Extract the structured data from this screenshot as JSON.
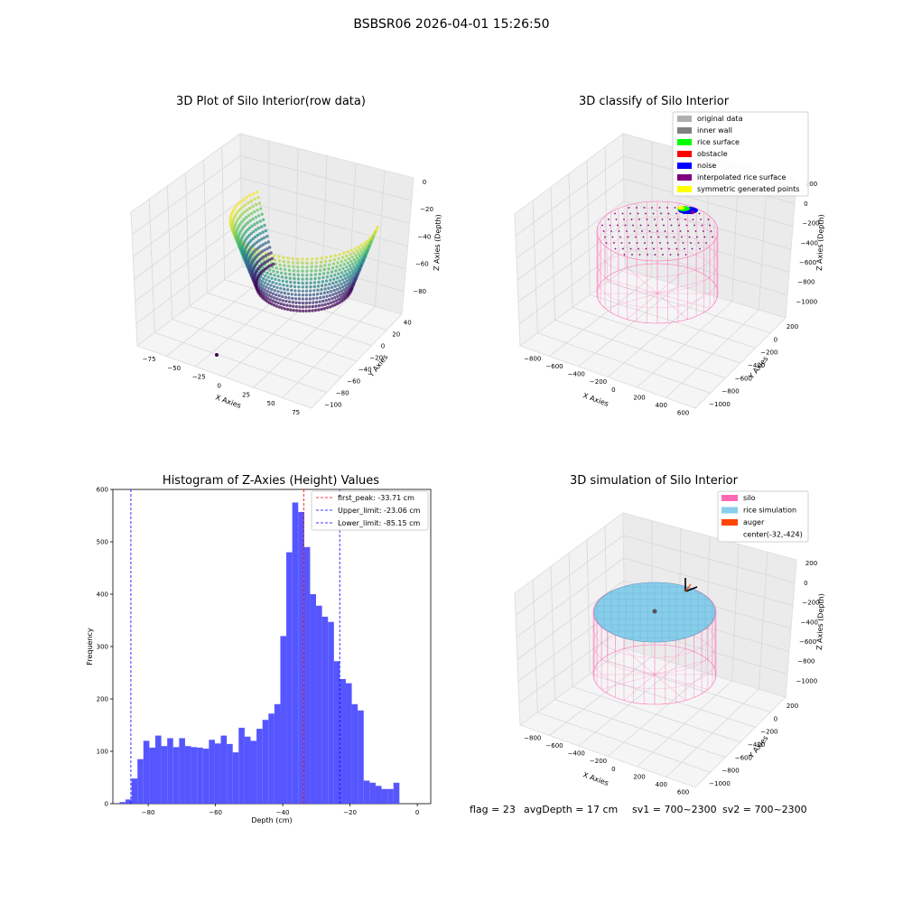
{
  "figure": {
    "suptitle": "BSBSR06 2026-04-01 15:26:50",
    "footer": {
      "flag": "flag = 23",
      "avg_depth": "avgDepth = 17 cm",
      "sv1": "sv1 = 700~2300",
      "sv2": "sv2 = 700~2300"
    }
  },
  "colors": {
    "hist_bar": "#4d4dff",
    "first_peak": "#ff0000",
    "limit": "#0000ff",
    "silo": "#ff69b4",
    "rice_simulation": "#87ceeb",
    "auger": "#ff4500",
    "inner_wall": "#808080",
    "rice_surface": "#00ff00",
    "obstacle": "#ff0000",
    "noise": "#0000ff",
    "interpolated": "#800080",
    "symmetric": "#ffff00",
    "original": "#b0b0b0"
  },
  "chart_data": [
    {
      "type": "scatter3d",
      "title": "3D Plot of Silo Interior(row data)",
      "xlabel": "X Axies",
      "ylabel": "Y Axies",
      "zlabel": "Z Axies (Depth)",
      "x_ticks": [
        "−75",
        "−50",
        "−25",
        "0",
        "25",
        "50",
        "75"
      ],
      "y_ticks": [
        "−100",
        "−80",
        "−60",
        "−40",
        "−20",
        "0",
        "20",
        "40"
      ],
      "z_ticks": [
        "0",
        "−20",
        "−40",
        "−60",
        "−80"
      ],
      "colormap": "viridis",
      "xlim": [
        -90,
        90
      ],
      "ylim": [
        -105,
        50
      ],
      "zlim": [
        -95,
        5
      ]
    },
    {
      "type": "scatter3d",
      "title": "3D classify of Silo Interior",
      "xlabel": "X Axies",
      "ylabel": "Y Axies",
      "zlabel": "Z Axies (Depth)",
      "x_ticks": [
        "−800",
        "−600",
        "−400",
        "−200",
        "0",
        "200",
        "400",
        "600"
      ],
      "y_ticks": [
        "−1000",
        "−800",
        "−600",
        "−400",
        "−200",
        "0",
        "200"
      ],
      "z_ticks": [
        "200",
        "0",
        "−200",
        "−400",
        "−600",
        "−800",
        "−1000"
      ],
      "legend": [
        "original data",
        "inner wall",
        "rice surface",
        "obstacle",
        "noise",
        "interpolated rice surface",
        "symmetric generated points"
      ],
      "legend_placement": "top-right"
    },
    {
      "type": "bar",
      "title": "Histogram of Z-Axies (Height) Values",
      "xlabel": "Depth (cm)",
      "ylabel": "Frequency",
      "xlim": [
        -90.5,
        4
      ],
      "ylim": [
        0,
        600
      ],
      "x_ticks": [
        -80,
        -60,
        -40,
        -20,
        0
      ],
      "y_ticks": [
        0,
        100,
        200,
        300,
        400,
        500,
        600
      ],
      "bin_start": -88.5,
      "bin_width": 1.77,
      "values": [
        3,
        8,
        48,
        85,
        120,
        107,
        130,
        110,
        125,
        108,
        125,
        110,
        108,
        107,
        105,
        122,
        115,
        130,
        114,
        98,
        145,
        128,
        120,
        143,
        160,
        172,
        190,
        320,
        480,
        575,
        557,
        490,
        400,
        378,
        357,
        347,
        272,
        238,
        230,
        190,
        178,
        44,
        40,
        34,
        28,
        28,
        40
      ],
      "vlines": [
        {
          "label": "first_peak: -33.71 cm",
          "x": -33.71,
          "color": "#ff0000"
        },
        {
          "label": "Upper_limit: -23.06 cm",
          "x": -23.06,
          "color": "#0000ff"
        },
        {
          "label": "Lower_limit: -85.15 cm",
          "x": -85.15,
          "color": "#0000ff"
        }
      ],
      "legend_placement": "top-right"
    },
    {
      "type": "surface3d",
      "title": "3D simulation of Silo Interior",
      "xlabel": "X Axies",
      "ylabel": "Y Axies",
      "zlabel": "Z Axies (Depth)",
      "x_ticks": [
        "−800",
        "−600",
        "−400",
        "−200",
        "0",
        "200",
        "400",
        "600"
      ],
      "y_ticks": [
        "−1000",
        "−800",
        "−600",
        "−400",
        "−200",
        "0",
        "200"
      ],
      "z_ticks": [
        "200",
        "0",
        "−200",
        "−400",
        "−600",
        "−800",
        "−1000"
      ],
      "legend": [
        "silo",
        "rice simulation",
        "auger",
        "center(-32,-424)"
      ],
      "legend_placement": "top-right"
    }
  ]
}
